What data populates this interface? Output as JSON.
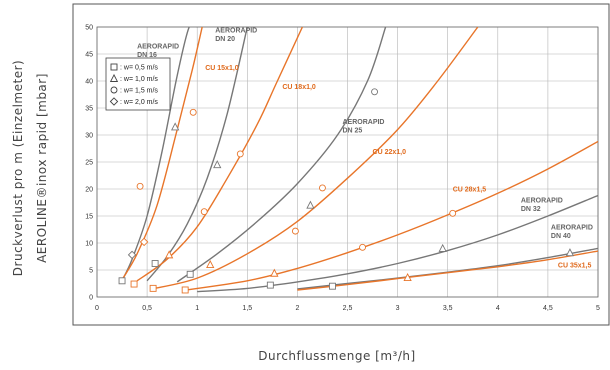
{
  "chart_data": {
    "type": "line",
    "ylabel_line1": "Druckverlust pro m (Einzelmeter)",
    "ylabel_line2": "AEROLINE®inox rapid [mbar]",
    "xlabel": "Durchflussmenge [m³/h]",
    "xlim": [
      0,
      5
    ],
    "ylim": [
      0,
      50
    ],
    "x_ticks": [
      "0",
      "0,5",
      "1",
      "1,5",
      "2",
      "2,5",
      "3",
      "3,5",
      "4",
      "4,5",
      "5"
    ],
    "y_ticks": [
      "0",
      "5",
      "10",
      "15",
      "20",
      "25",
      "30",
      "35",
      "40",
      "45",
      "50"
    ],
    "grid": true,
    "colors": {
      "aerorapid": "#777777",
      "cu": "#e8752a",
      "label_aerorapid": "#666666",
      "label_cu": "#e06a1c"
    },
    "legend": {
      "placement": "top-left",
      "entries": [
        {
          "marker": "square",
          "label": ": w= 0,5 m/s"
        },
        {
          "marker": "triangle",
          "label": ": w= 1,0 m/s"
        },
        {
          "marker": "circle",
          "label": ": w= 1,5 m/s"
        },
        {
          "marker": "diamond",
          "label": ": w= 2,0 m/s"
        }
      ]
    },
    "series": [
      {
        "name_line1": "AERORAPID",
        "name_line2": "DN 16",
        "family": "aerorapid",
        "x": [
          0.25,
          0.35,
          0.5,
          0.65,
          0.8,
          0.92,
          1.0
        ],
        "y": [
          3,
          7,
          15,
          27,
          41,
          50,
          50
        ]
      },
      {
        "name_line1": "CU 15x1,0",
        "name_line2": "",
        "family": "cu",
        "x": [
          0.25,
          0.4,
          0.6,
          0.8,
          0.95,
          1.05
        ],
        "y": [
          3.2,
          8,
          17,
          31,
          42,
          50
        ]
      },
      {
        "name_line1": "AERORAPID",
        "name_line2": "DN 20",
        "family": "aerorapid",
        "x": [
          0.5,
          0.7,
          0.9,
          1.1,
          1.3,
          1.5
        ],
        "y": [
          3,
          7.5,
          13.5,
          22,
          34,
          50
        ]
      },
      {
        "name_line1": "CU 18x1,0",
        "name_line2": "",
        "family": "cu",
        "x": [
          0.4,
          0.7,
          1.0,
          1.3,
          1.6,
          1.8,
          2.05
        ],
        "y": [
          3,
          7,
          13,
          22,
          32,
          40,
          50
        ]
      },
      {
        "name_line1": "AERORAPID",
        "name_line2": "DN 25",
        "family": "aerorapid",
        "x": [
          0.8,
          1.2,
          1.6,
          2.0,
          2.4,
          2.7,
          2.88
        ],
        "y": [
          2.8,
          8,
          14,
          21,
          30,
          40,
          50
        ]
      },
      {
        "name_line1": "CU 22x1,0",
        "name_line2": "",
        "family": "cu",
        "x": [
          0.55,
          1.0,
          1.5,
          2.0,
          2.5,
          3.0,
          3.4,
          3.8
        ],
        "y": [
          1.5,
          3.5,
          8,
          14,
          22,
          31,
          40,
          50
        ]
      },
      {
        "name_line1": "CU 28x1,5",
        "name_line2": "",
        "family": "cu",
        "x": [
          0.85,
          1.5,
          2.0,
          2.5,
          3.0,
          3.5,
          4.0,
          4.5,
          5.0
        ],
        "y": [
          1.2,
          3,
          5.3,
          8.2,
          11.5,
          15.2,
          19.2,
          23.7,
          28.8
        ]
      },
      {
        "name_line1": "AERORAPID",
        "name_line2": "DN 32",
        "family": "aerorapid",
        "x": [
          1.0,
          1.5,
          2.0,
          2.5,
          3.0,
          3.5,
          4.0,
          4.5,
          5.0
        ],
        "y": [
          1,
          1.6,
          2.8,
          4.3,
          6.2,
          8.6,
          11.5,
          15,
          18.8
        ]
      },
      {
        "name_line1": "AERORAPID",
        "name_line2": "DN 40",
        "family": "aerorapid",
        "x": [
          2.0,
          2.5,
          3.0,
          3.5,
          4.0,
          4.5,
          5.0
        ],
        "y": [
          1.5,
          2.5,
          3.5,
          4.6,
          5.8,
          7.3,
          9
        ]
      },
      {
        "name_line1": "CU 35x1,5",
        "name_line2": "",
        "family": "cu",
        "x": [
          2.0,
          2.5,
          3.0,
          3.5,
          4.0,
          4.5,
          5.0
        ],
        "y": [
          1.3,
          2.3,
          3.4,
          4.5,
          5.6,
          6.9,
          8.5
        ]
      }
    ],
    "markers": [
      {
        "shape": "square",
        "family": "aerorapid",
        "x": 0.25,
        "y": 3
      },
      {
        "shape": "square",
        "family": "aerorapid",
        "x": 0.58,
        "y": 6.2
      },
      {
        "shape": "square",
        "family": "aerorapid",
        "x": 0.93,
        "y": 4.2
      },
      {
        "shape": "square",
        "family": "aerorapid",
        "x": 1.73,
        "y": 2.2
      },
      {
        "shape": "square",
        "family": "aerorapid",
        "x": 2.35,
        "y": 2
      },
      {
        "shape": "square",
        "family": "cu",
        "x": 0.37,
        "y": 2.4
      },
      {
        "shape": "square",
        "family": "cu",
        "x": 0.56,
        "y": 1.6
      },
      {
        "shape": "square",
        "family": "cu",
        "x": 0.88,
        "y": 1.3
      },
      {
        "shape": "triangle",
        "family": "aerorapid",
        "x": 0.78,
        "y": 31.5
      },
      {
        "shape": "triangle",
        "family": "aerorapid",
        "x": 1.2,
        "y": 24.5
      },
      {
        "shape": "triangle",
        "family": "aerorapid",
        "x": 2.13,
        "y": 17
      },
      {
        "shape": "triangle",
        "family": "aerorapid",
        "x": 3.45,
        "y": 9
      },
      {
        "shape": "triangle",
        "family": "aerorapid",
        "x": 4.72,
        "y": 8.2
      },
      {
        "shape": "triangle",
        "family": "cu",
        "x": 0.72,
        "y": 7.8
      },
      {
        "shape": "triangle",
        "family": "cu",
        "x": 1.13,
        "y": 6
      },
      {
        "shape": "triangle",
        "family": "cu",
        "x": 1.77,
        "y": 4.4
      },
      {
        "shape": "triangle",
        "family": "cu",
        "x": 3.1,
        "y": 3.6
      },
      {
        "shape": "circle",
        "family": "cu",
        "x": 0.43,
        "y": 20.5
      },
      {
        "shape": "circle",
        "family": "cu",
        "x": 0.96,
        "y": 34.2
      },
      {
        "shape": "circle",
        "family": "cu",
        "x": 1.07,
        "y": 15.8
      },
      {
        "shape": "circle",
        "family": "cu",
        "x": 1.43,
        "y": 26.5
      },
      {
        "shape": "circle",
        "family": "aerorapid",
        "x": 2.77,
        "y": 38
      },
      {
        "shape": "circle",
        "family": "cu",
        "x": 1.98,
        "y": 12.2
      },
      {
        "shape": "circle",
        "family": "cu",
        "x": 2.25,
        "y": 20.2
      },
      {
        "shape": "circle",
        "family": "cu",
        "x": 2.65,
        "y": 9.2
      },
      {
        "shape": "circle",
        "family": "cu",
        "x": 3.55,
        "y": 15.5
      },
      {
        "shape": "diamond",
        "family": "aerorapid",
        "x": 0.35,
        "y": 7.8
      },
      {
        "shape": "diamond",
        "family": "cu",
        "x": 0.47,
        "y": 10.2
      }
    ],
    "annotations": [
      {
        "series_index": 0,
        "pos": [
          0.4,
          46
        ]
      },
      {
        "series_index": 1,
        "pos": [
          1.08,
          42
        ]
      },
      {
        "series_index": 2,
        "pos": [
          1.18,
          49
        ]
      },
      {
        "series_index": 3,
        "pos": [
          1.85,
          38.5
        ]
      },
      {
        "series_index": 4,
        "pos": [
          2.45,
          32
        ]
      },
      {
        "series_index": 5,
        "pos": [
          2.75,
          26.5
        ]
      },
      {
        "series_index": 6,
        "pos": [
          3.55,
          19.5
        ]
      },
      {
        "series_index": 7,
        "pos": [
          4.23,
          17.5
        ]
      },
      {
        "series_index": 8,
        "pos": [
          4.53,
          12.5
        ]
      },
      {
        "series_index": 9,
        "pos": [
          4.6,
          5.5
        ]
      }
    ]
  }
}
